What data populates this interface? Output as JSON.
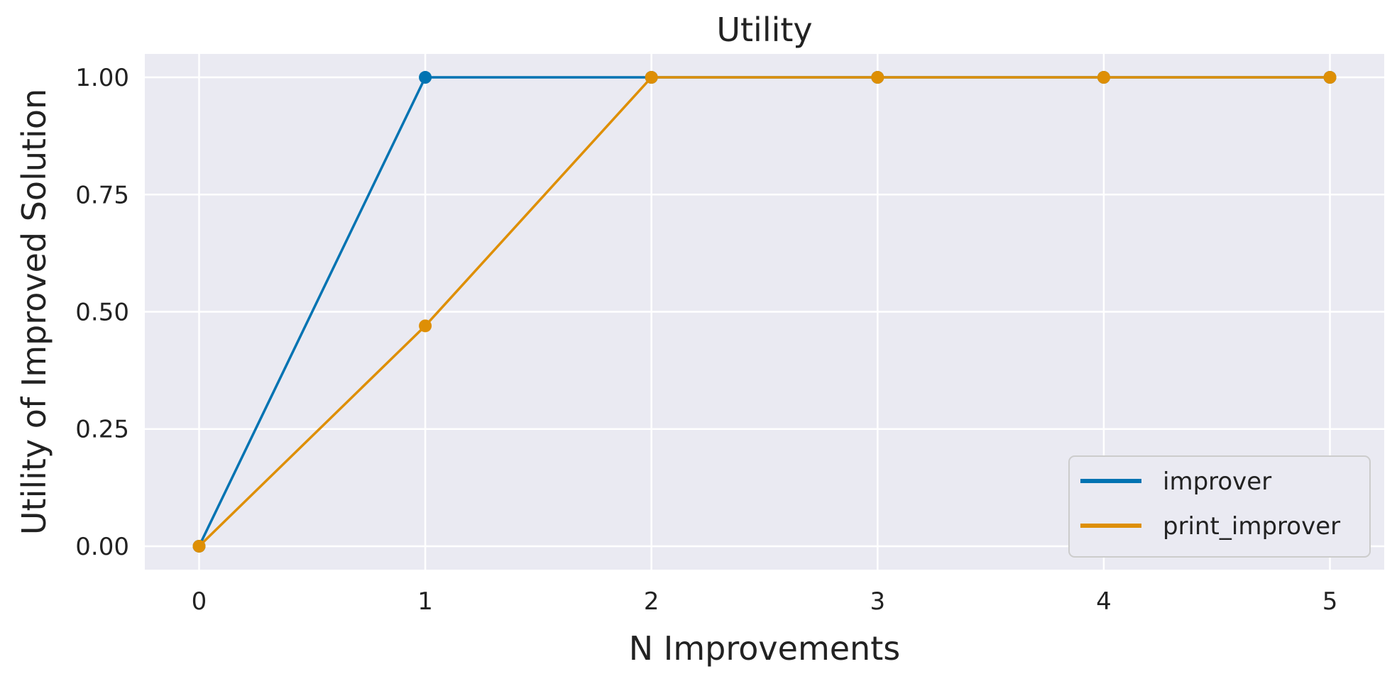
{
  "chart_data": {
    "type": "line",
    "title": "Utility",
    "xlabel": "N Improvements",
    "ylabel": "Utility of Improved Solution",
    "x": [
      0,
      1,
      2,
      3,
      4,
      5
    ],
    "xlim": [
      -0.24,
      5.24
    ],
    "ylim": [
      -0.05,
      1.05
    ],
    "xticks": [
      0,
      1,
      2,
      3,
      4,
      5
    ],
    "xtick_labels": [
      "0",
      "1",
      "2",
      "3",
      "4",
      "5"
    ],
    "yticks": [
      0,
      0.25,
      0.5,
      0.75,
      1.0
    ],
    "ytick_labels": [
      "0.00",
      "0.25",
      "0.50",
      "0.75",
      "1.00"
    ],
    "grid": true,
    "legend_position": "bottom-right",
    "background_color": "#EAEAF2",
    "grid_color": "#FFFFFF",
    "series": [
      {
        "name": "improver",
        "color": "#0173B2",
        "values": [
          0,
          1.0,
          1.0,
          1.0,
          1.0,
          1.0
        ]
      },
      {
        "name": "print_improver",
        "color": "#DE8F05",
        "values": [
          0,
          0.47,
          1.0,
          1.0,
          1.0,
          1.0
        ]
      }
    ]
  }
}
